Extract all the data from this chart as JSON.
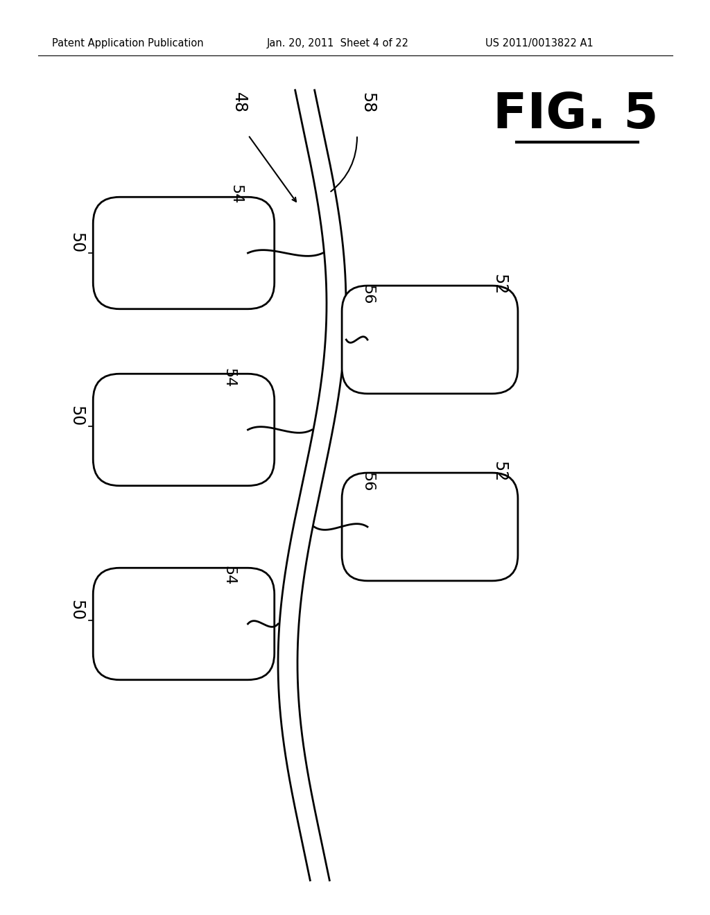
{
  "header_left": "Patent Application Publication",
  "header_mid": "Jan. 20, 2011  Sheet 4 of 22",
  "header_right": "US 2011/0013822 A1",
  "fig_label": "FIG. 5",
  "background_color": "#ffffff",
  "line_color": "#000000",
  "header_fontsize": 10.5,
  "label_fontsize": 16,
  "fig_label_fontsize": 52
}
